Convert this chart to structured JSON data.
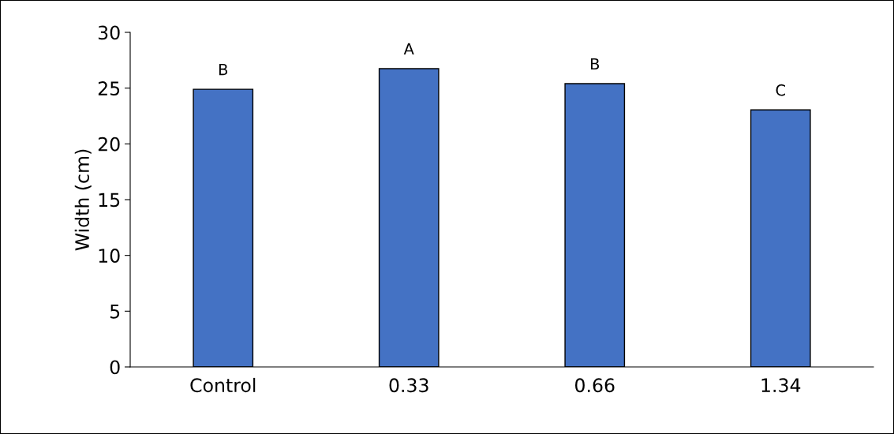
{
  "chart_data": {
    "type": "bar",
    "ylabel": "Width (cm)",
    "categories": [
      "Control",
      "0.33",
      "0.66",
      "1.34"
    ],
    "values": [
      24.9,
      26.75,
      25.4,
      23.05
    ],
    "color": "#4472c4",
    "ylim": [
      0,
      30
    ],
    "yticks": [
      0,
      5,
      10,
      15,
      20,
      25,
      30
    ],
    "grid": false,
    "annotations": [
      {
        "text": "B",
        "x": "Control",
        "y": 24.9
      },
      {
        "text": "A",
        "x": "0.33",
        "y": 26.75
      },
      {
        "text": "B",
        "x": "0.66",
        "y": 25.4
      },
      {
        "text": "C",
        "x": "1.34",
        "y": 23.05
      }
    ]
  }
}
